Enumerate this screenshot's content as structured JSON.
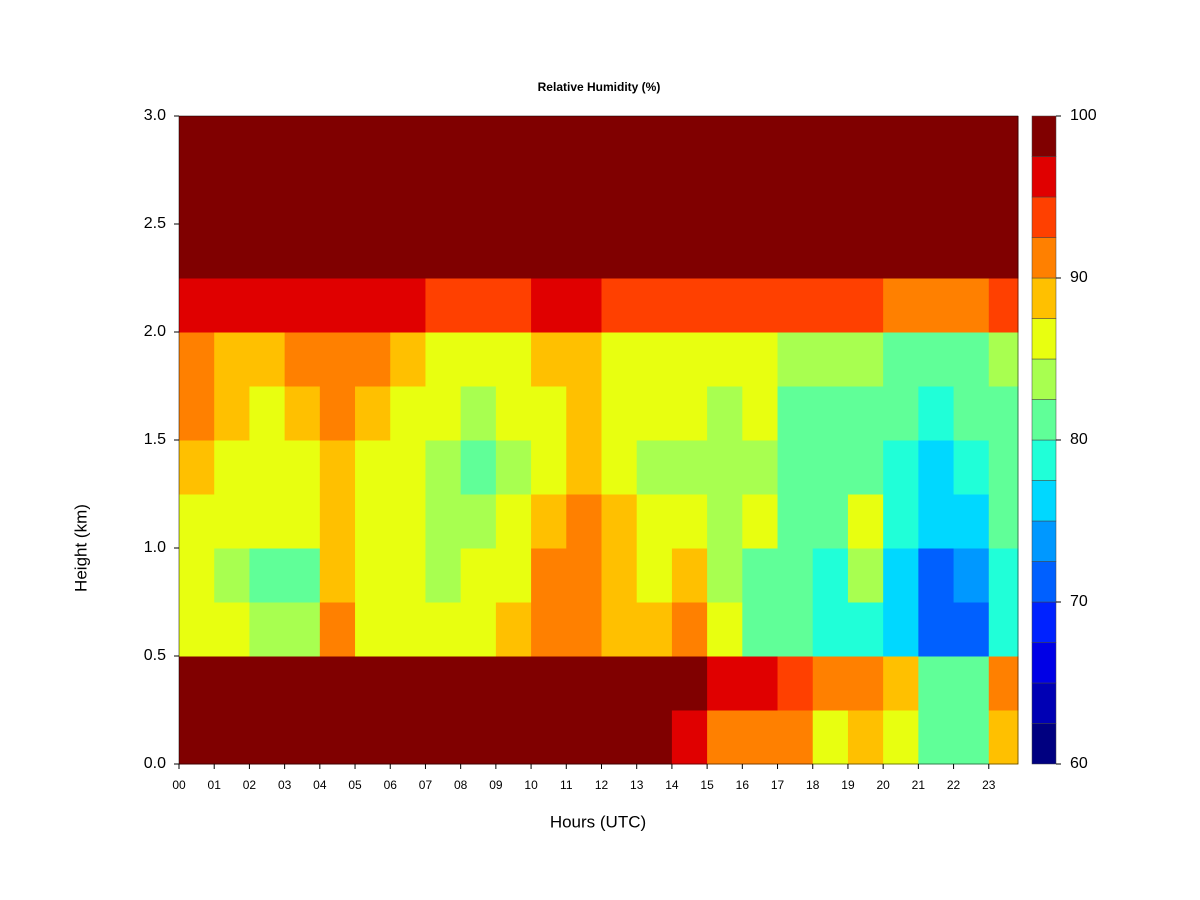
{
  "chart_data": {
    "type": "heatmap",
    "title": "Relative Humidity (%)",
    "xlabel": "Hours (UTC)",
    "ylabel": "Height (km)",
    "xlim": [
      0,
      23.83
    ],
    "ylim": [
      0,
      3
    ],
    "xticks": [
      {
        "value": 0,
        "label": "00"
      },
      {
        "value": 1,
        "label": "01"
      },
      {
        "value": 2,
        "label": "02"
      },
      {
        "value": 3,
        "label": "03"
      },
      {
        "value": 4,
        "label": "04"
      },
      {
        "value": 5,
        "label": "05"
      },
      {
        "value": 6,
        "label": "06"
      },
      {
        "value": 7,
        "label": "07"
      },
      {
        "value": 8,
        "label": "08"
      },
      {
        "value": 9,
        "label": "09"
      },
      10,
      11,
      12,
      13,
      14,
      15,
      16,
      17,
      18,
      19,
      20,
      21,
      22,
      23
    ],
    "yticks": [
      {
        "value": 0,
        "label": "0.0"
      },
      0.5,
      {
        "value": 1,
        "label": "1.0"
      },
      1.5,
      {
        "value": 2,
        "label": "2.0"
      },
      2.5,
      {
        "value": 3,
        "label": "3.0"
      }
    ],
    "clim": [
      60,
      100
    ],
    "cticks": [
      60,
      70,
      80,
      90,
      100
    ],
    "colors": [
      "#000080",
      "#0000b4",
      "#0000e6",
      "#0022ff",
      "#0060ff",
      "#0098ff",
      "#00d8ff",
      "#20ffd8",
      "#60ff98",
      "#a8ff50",
      "#e8ff10",
      "#ffc000",
      "#ff8000",
      "#ff4000",
      "#e00000",
      "#800000"
    ],
    "x": [
      0,
      1,
      2,
      3,
      4,
      5,
      6,
      7,
      8,
      9,
      10,
      11,
      12,
      13,
      14,
      15,
      16,
      17,
      18,
      19,
      20,
      21,
      22,
      23
    ],
    "y": [
      0,
      0.25,
      0.5,
      0.75,
      1,
      1.25,
      1.5,
      1.75,
      2,
      2.25,
      2.5,
      2.75
    ],
    "z": [
      [
        98,
        98,
        98,
        98,
        98,
        98,
        98,
        98,
        98,
        98,
        98,
        98,
        98,
        98,
        97,
        92,
        92,
        90,
        85,
        88,
        85,
        80,
        82,
        88
      ],
      [
        98,
        98,
        98,
        98,
        98,
        98,
        98,
        98,
        98,
        98,
        98,
        98,
        98,
        98,
        98,
        97,
        96,
        93,
        91,
        92,
        88,
        82,
        80,
        90
      ],
      [
        86,
        85,
        83,
        83,
        90,
        86,
        86,
        85,
        87,
        88,
        92,
        90,
        88,
        88,
        90,
        86,
        82,
        80,
        79,
        78,
        76,
        71,
        72,
        78
      ],
      [
        85,
        84,
        81,
        82,
        88,
        86,
        85,
        83,
        85,
        87,
        90,
        90,
        89,
        87,
        88,
        84,
        82,
        80,
        79,
        84,
        77,
        72,
        73,
        78
      ],
      [
        87,
        86,
        85,
        85,
        89,
        87,
        86,
        84,
        84,
        86,
        88,
        90,
        88,
        85,
        85,
        84,
        87,
        82,
        80,
        85,
        78,
        76,
        77,
        80
      ],
      [
        88,
        87,
        86,
        86,
        89,
        87,
        86,
        83,
        82,
        84,
        86,
        88,
        86,
        84,
        84,
        83,
        84,
        81,
        80,
        82,
        78,
        77,
        78,
        81
      ],
      [
        90,
        88,
        87,
        88,
        90,
        89,
        87,
        85,
        84,
        86,
        87,
        88,
        86,
        85,
        85,
        84,
        85,
        82,
        81,
        82,
        80,
        79,
        80,
        82
      ],
      [
        91,
        89,
        89,
        90,
        91,
        90,
        88,
        87,
        86,
        87,
        88,
        88,
        87,
        86,
        86,
        85,
        85,
        83,
        83,
        83,
        82,
        81,
        82,
        84
      ],
      [
        96,
        95,
        95,
        96,
        96,
        95,
        95,
        94,
        94,
        94,
        95,
        95,
        94,
        94,
        94,
        94,
        93,
        93,
        93,
        93,
        92,
        92,
        92,
        93
      ],
      [
        99,
        99,
        99,
        99,
        99,
        99,
        99,
        99,
        99,
        99,
        99,
        99,
        99,
        99,
        99,
        99,
        99,
        99,
        99,
        99,
        99,
        99,
        99,
        99
      ],
      [
        99.5,
        99.5,
        99.5,
        99.5,
        99.5,
        99.5,
        99.5,
        99.5,
        99.5,
        99.5,
        99.5,
        99.5,
        99.5,
        99.5,
        99.5,
        99.5,
        99.5,
        99.5,
        99.5,
        99.5,
        99.5,
        99.5,
        99.5,
        99.5
      ],
      [
        99,
        99,
        99,
        99,
        99,
        99,
        99,
        99,
        99,
        99,
        99,
        99,
        99,
        99,
        99,
        99,
        99,
        99,
        99,
        99,
        99,
        99,
        99,
        99
      ]
    ]
  }
}
